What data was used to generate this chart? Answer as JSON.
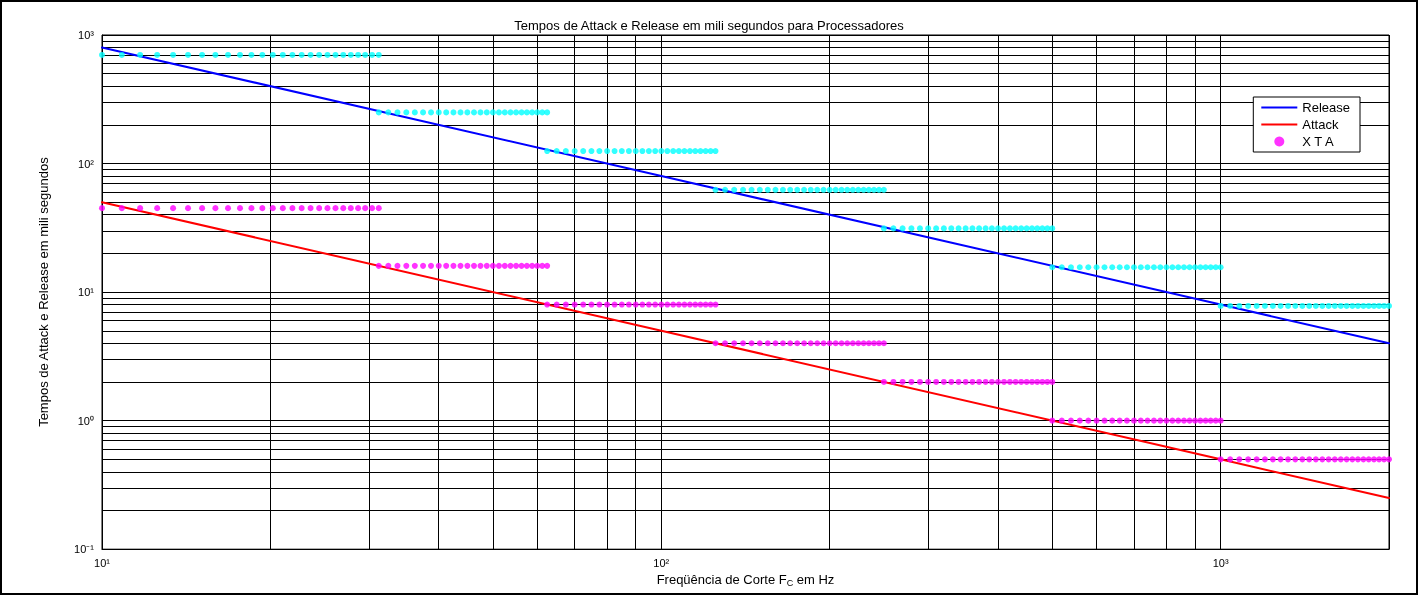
{
  "chart_data": {
    "type": "line",
    "title": "Tempos de Attack e Release em mili segundos para Processadores",
    "xlabel": "Freqüência de Corte F$_{C}$ em Hz",
    "ylabel": "Tempos de Attack e Release em mili segundos",
    "log": "xy",
    "grid": true,
    "legend": "top right",
    "line_style": "solid",
    "xlim": [
      10,
      2000
    ],
    "ylim": [
      0.1,
      1000
    ],
    "xticks": [
      {
        "value": 10,
        "label": "10¹"
      },
      {
        "value": 20,
        "label": null
      },
      {
        "value": 30,
        "label": null
      },
      {
        "value": 40,
        "label": null
      },
      {
        "value": 50,
        "label": null
      },
      {
        "value": 60,
        "label": null
      },
      {
        "value": 70,
        "label": null
      },
      {
        "value": 80,
        "label": null
      },
      {
        "value": 90,
        "label": null
      },
      {
        "value": 100,
        "label": "10²"
      },
      {
        "value": 200,
        "label": null
      },
      {
        "value": 300,
        "label": null
      },
      {
        "value": 400,
        "label": null
      },
      {
        "value": 500,
        "label": null
      },
      {
        "value": 600,
        "label": null
      },
      {
        "value": 700,
        "label": null
      },
      {
        "value": 800,
        "label": null
      },
      {
        "value": 900,
        "label": null
      },
      {
        "value": 1000,
        "label": "10³"
      },
      {
        "value": 2000,
        "label": null
      }
    ],
    "yticks": [
      {
        "value": 0.1,
        "label": "10⁻¹"
      },
      {
        "value": 0.2,
        "label": null
      },
      {
        "value": 0.3,
        "label": null
      },
      {
        "value": 0.4,
        "label": null
      },
      {
        "value": 0.5,
        "label": null
      },
      {
        "value": 0.6,
        "label": null
      },
      {
        "value": 0.7,
        "label": null
      },
      {
        "value": 0.8,
        "label": null
      },
      {
        "value": 0.9,
        "label": null
      },
      {
        "value": 1,
        "label": "10⁰"
      },
      {
        "value": 2,
        "label": null
      },
      {
        "value": 3,
        "label": null
      },
      {
        "value": 4,
        "label": null
      },
      {
        "value": 5,
        "label": null
      },
      {
        "value": 6,
        "label": null
      },
      {
        "value": 7,
        "label": null
      },
      {
        "value": 8,
        "label": null
      },
      {
        "value": 9,
        "label": null
      },
      {
        "value": 10,
        "label": "10¹"
      },
      {
        "value": 20,
        "label": null
      },
      {
        "value": 30,
        "label": null
      },
      {
        "value": 40,
        "label": null
      },
      {
        "value": 50,
        "label": null
      },
      {
        "value": 60,
        "label": null
      },
      {
        "value": 70,
        "label": null
      },
      {
        "value": 80,
        "label": null
      },
      {
        "value": 90,
        "label": null
      },
      {
        "value": 100,
        "label": "10²"
      },
      {
        "value": 200,
        "label": null
      },
      {
        "value": 300,
        "label": null
      },
      {
        "value": 400,
        "label": null
      },
      {
        "value": 500,
        "label": null
      },
      {
        "value": 600,
        "label": null
      },
      {
        "value": 700,
        "label": null
      },
      {
        "value": 800,
        "label": null
      },
      {
        "value": 900,
        "label": null
      },
      {
        "value": 1000,
        "label": "10³"
      }
    ],
    "x": [
      10,
      10.85,
      11.7,
      12.55,
      13.4,
      14.25,
      15.1,
      15.95,
      16.8,
      17.65,
      18.5,
      19.35,
      20.2,
      21.05,
      21.9,
      22.75,
      23.6,
      24.45,
      25.3,
      26.15,
      27,
      27.85,
      28.7,
      29.55,
      30.4,
      31.25,
      31.25,
      32.5,
      33.75,
      35,
      36.25,
      37.5,
      38.75,
      40,
      41.25,
      42.5,
      43.75,
      45,
      46.25,
      47.5,
      48.75,
      50,
      51.25,
      52.5,
      53.75,
      55,
      56.25,
      57.5,
      58.75,
      60,
      61.25,
      62.5,
      62.5,
      65,
      67.5,
      70,
      72.5,
      75,
      77.5,
      80,
      82.5,
      85,
      87.5,
      90,
      92.5,
      95,
      97.5,
      100,
      102.5,
      105,
      107.5,
      110,
      112.5,
      115,
      117.5,
      120,
      122.5,
      125,
      125,
      130,
      135,
      140,
      145,
      150,
      155,
      160,
      165,
      170,
      175,
      180,
      185,
      190,
      195,
      200,
      205,
      210,
      215,
      220,
      225,
      230,
      235,
      240,
      245,
      250,
      250,
      260,
      270,
      280,
      290,
      300,
      310,
      320,
      330,
      340,
      350,
      360,
      370,
      380,
      390,
      400,
      410,
      420,
      430,
      440,
      450,
      460,
      470,
      480,
      490,
      500,
      500,
      520,
      540,
      560,
      580,
      600,
      620,
      640,
      660,
      680,
      700,
      720,
      740,
      760,
      780,
      800,
      820,
      840,
      860,
      880,
      900,
      920,
      940,
      960,
      980,
      1000,
      1000,
      1040,
      1080,
      1120,
      1160,
      1200,
      1240,
      1280,
      1320,
      1360,
      1400,
      1440,
      1480,
      1520,
      1560,
      1600,
      1640,
      1680,
      1720,
      1760,
      1800,
      1840,
      1880,
      1920,
      1960,
      2000
    ],
    "series": [
      {
        "name": "Release",
        "color": "#0000ff",
        "x": [
          10,
          100,
          1000,
          2000
        ],
        "values": [
          800,
          80,
          8,
          4
        ]
      },
      {
        "name": "Attack",
        "color": "#ff0000",
        "x": [
          10,
          100,
          1000,
          2000
        ],
        "values": [
          50,
          5,
          0.5,
          0.25
        ]
      },
      {
        "type": "scatter",
        "marker": "circle",
        "color": "#00ffff",
        "values": [
          700,
          700,
          700,
          700,
          700,
          700,
          700,
          700,
          700,
          700,
          700,
          700,
          700,
          700,
          700,
          700,
          700,
          700,
          700,
          700,
          700,
          700,
          700,
          700,
          700,
          700,
          250,
          250,
          250,
          250,
          250,
          250,
          250,
          250,
          250,
          250,
          250,
          250,
          250,
          250,
          250,
          250,
          250,
          250,
          250,
          250,
          250,
          250,
          250,
          250,
          250,
          250,
          125,
          125,
          125,
          125,
          125,
          125,
          125,
          125,
          125,
          125,
          125,
          125,
          125,
          125,
          125,
          125,
          125,
          125,
          125,
          125,
          125,
          125,
          125,
          125,
          125,
          125,
          62.5,
          62.5,
          62.5,
          62.5,
          62.5,
          62.5,
          62.5,
          62.5,
          62.5,
          62.5,
          62.5,
          62.5,
          62.5,
          62.5,
          62.5,
          62.5,
          62.5,
          62.5,
          62.5,
          62.5,
          62.5,
          62.5,
          62.5,
          62.5,
          62.5,
          62.5,
          31.3,
          31.3,
          31.3,
          31.3,
          31.3,
          31.3,
          31.3,
          31.3,
          31.3,
          31.3,
          31.3,
          31.3,
          31.3,
          31.3,
          31.3,
          31.3,
          31.3,
          31.3,
          31.3,
          31.3,
          31.3,
          31.3,
          31.3,
          31.3,
          31.3,
          31.3,
          15.6,
          15.6,
          15.6,
          15.6,
          15.6,
          15.6,
          15.6,
          15.6,
          15.6,
          15.6,
          15.6,
          15.6,
          15.6,
          15.6,
          15.6,
          15.6,
          15.6,
          15.6,
          15.6,
          15.6,
          15.6,
          15.6,
          15.6,
          15.6,
          15.6,
          15.6,
          7.8,
          7.8,
          7.8,
          7.8,
          7.8,
          7.8,
          7.8,
          7.8,
          7.8,
          7.8,
          7.8,
          7.8,
          7.8,
          7.8,
          7.8,
          7.8,
          7.8,
          7.8,
          7.8,
          7.8,
          7.8,
          7.8,
          7.8,
          7.8,
          7.8,
          7.8
        ]
      },
      {
        "name": "X T A",
        "type": "scatter",
        "marker": "circle",
        "color": "#ff00ff",
        "values": [
          45,
          45,
          45,
          45,
          45,
          45,
          45,
          45,
          45,
          45,
          45,
          45,
          45,
          45,
          45,
          45,
          45,
          45,
          45,
          45,
          45,
          45,
          45,
          45,
          45,
          45,
          16,
          16,
          16,
          16,
          16,
          16,
          16,
          16,
          16,
          16,
          16,
          16,
          16,
          16,
          16,
          16,
          16,
          16,
          16,
          16,
          16,
          16,
          16,
          16,
          16,
          16,
          8,
          8,
          8,
          8,
          8,
          8,
          8,
          8,
          8,
          8,
          8,
          8,
          8,
          8,
          8,
          8,
          8,
          8,
          8,
          8,
          8,
          8,
          8,
          8,
          8,
          8,
          4,
          4,
          4,
          4,
          4,
          4,
          4,
          4,
          4,
          4,
          4,
          4,
          4,
          4,
          4,
          4,
          4,
          4,
          4,
          4,
          4,
          4,
          4,
          4,
          4,
          4,
          2,
          2,
          2,
          2,
          2,
          2,
          2,
          2,
          2,
          2,
          2,
          2,
          2,
          2,
          2,
          2,
          2,
          2,
          2,
          2,
          2,
          2,
          2,
          2,
          2,
          2,
          1,
          1,
          1,
          1,
          1,
          1,
          1,
          1,
          1,
          1,
          1,
          1,
          1,
          1,
          1,
          1,
          1,
          1,
          1,
          1,
          1,
          1,
          1,
          1,
          1,
          1,
          0.5,
          0.5,
          0.5,
          0.5,
          0.5,
          0.5,
          0.5,
          0.5,
          0.5,
          0.5,
          0.5,
          0.5,
          0.5,
          0.5,
          0.5,
          0.5,
          0.5,
          0.5,
          0.5,
          0.5,
          0.5,
          0.5,
          0.5,
          0.5,
          0.5,
          0.5
        ]
      }
    ]
  }
}
